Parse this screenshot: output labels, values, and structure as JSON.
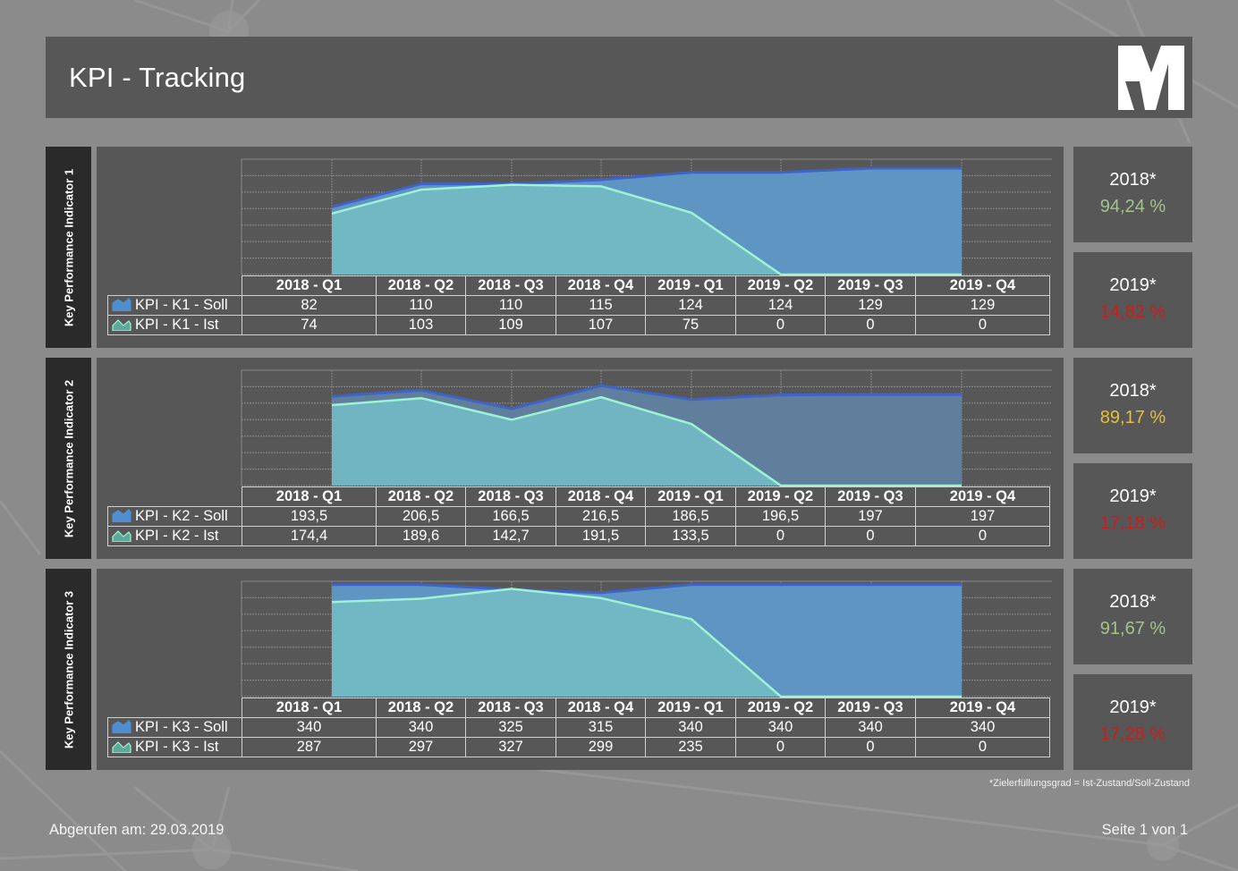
{
  "header": {
    "title": "KPI - Tracking",
    "logo": "M-logo"
  },
  "colors": {
    "soll_fill": "#5f95c2",
    "soll_fill_kpi2": "#5f7f9c",
    "soll_line": "#3f63c8",
    "ist_fill": "#72b8c4",
    "ist_line": "#9ff3d4",
    "good": "#a2c48a",
    "warn": "#e8bf3c",
    "bad": "#d11a1a"
  },
  "quarters": [
    "2018 - Q1",
    "2018 - Q2",
    "2018 - Q3",
    "2018 - Q4",
    "2019 - Q1",
    "2019 - Q2",
    "2019 - Q3",
    "2019 - Q4"
  ],
  "kpis": [
    {
      "label": "Key Performance Indicator 1",
      "soll_label": "KPI - K1 - Soll",
      "ist_label": "KPI - K1 - Ist",
      "soll": [
        "82",
        "110",
        "110",
        "115",
        "124",
        "124",
        "129",
        "129"
      ],
      "ist": [
        "74",
        "103",
        "109",
        "107",
        "75",
        "0",
        "0",
        "0"
      ],
      "results": [
        {
          "year": "2018*",
          "value": "94,24 %",
          "status": "good"
        },
        {
          "year": "2019*",
          "value": "14,82 %",
          "status": "bad"
        }
      ]
    },
    {
      "label": "Key Performance Indicator 2",
      "soll_label": "KPI - K2 - Soll",
      "ist_label": "KPI - K2 - Ist",
      "soll": [
        "193,5",
        "206,5",
        "166,5",
        "216,5",
        "186,5",
        "196,5",
        "197",
        "197"
      ],
      "ist": [
        "174,4",
        "189,6",
        "142,7",
        "191,5",
        "133,5",
        "0",
        "0",
        "0"
      ],
      "results": [
        {
          "year": "2018*",
          "value": "89,17 %",
          "status": "warn"
        },
        {
          "year": "2019*",
          "value": "17,18 %",
          "status": "bad"
        }
      ]
    },
    {
      "label": "Key Performance Indicator 3",
      "soll_label": "KPI - K3 - Soll",
      "ist_label": "KPI - K3 - Ist",
      "soll": [
        "340",
        "340",
        "325",
        "315",
        "340",
        "340",
        "340",
        "340"
      ],
      "ist": [
        "287",
        "297",
        "327",
        "299",
        "235",
        "0",
        "0",
        "0"
      ],
      "results": [
        {
          "year": "2018*",
          "value": "91,67 %",
          "status": "good"
        },
        {
          "year": "2019*",
          "value": "17,28 %",
          "status": "bad"
        }
      ]
    }
  ],
  "footer": {
    "footnote": "*Zielerfüllungsgrad = Ist-Zustand/Soll-Zustand",
    "retrieved": "Abgerufen am:  29.03.2019",
    "page": "Seite 1 von 1"
  },
  "chart_data": [
    {
      "type": "area",
      "title": "Key Performance Indicator 1",
      "categories": [
        "2018 - Q1",
        "2018 - Q2",
        "2018 - Q3",
        "2018 - Q4",
        "2019 - Q1",
        "2019 - Q2",
        "2019 - Q3",
        "2019 - Q4"
      ],
      "series": [
        {
          "name": "KPI - K1 - Soll",
          "values": [
            82,
            110,
            110,
            115,
            124,
            124,
            129,
            129
          ]
        },
        {
          "name": "KPI - K1 - Ist",
          "values": [
            74,
            103,
            109,
            107,
            75,
            0,
            0,
            0
          ]
        }
      ],
      "ylim": [
        0,
        140
      ],
      "grid": true,
      "legend_position": "table-left",
      "annotations": [
        "2018*: 94,24 %",
        "2019*: 14,82 %"
      ]
    },
    {
      "type": "area",
      "title": "Key Performance Indicator 2",
      "categories": [
        "2018 - Q1",
        "2018 - Q2",
        "2018 - Q3",
        "2018 - Q4",
        "2019 - Q1",
        "2019 - Q2",
        "2019 - Q3",
        "2019 - Q4"
      ],
      "series": [
        {
          "name": "KPI - K2 - Soll",
          "values": [
            193.5,
            206.5,
            166.5,
            216.5,
            186.5,
            196.5,
            197,
            197
          ]
        },
        {
          "name": "KPI - K2 - Ist",
          "values": [
            174.4,
            189.6,
            142.7,
            191.5,
            133.5,
            0,
            0,
            0
          ]
        }
      ],
      "ylim": [
        0,
        250
      ],
      "grid": true,
      "legend_position": "table-left",
      "annotations": [
        "2018*: 89,17 %",
        "2019*: 17,18 %"
      ]
    },
    {
      "type": "area",
      "title": "Key Performance Indicator 3",
      "categories": [
        "2018 - Q1",
        "2018 - Q2",
        "2018 - Q3",
        "2018 - Q4",
        "2019 - Q1",
        "2019 - Q2",
        "2019 - Q3",
        "2019 - Q4"
      ],
      "series": [
        {
          "name": "KPI - K3 - Soll",
          "values": [
            340,
            340,
            325,
            315,
            340,
            340,
            340,
            340
          ]
        },
        {
          "name": "KPI - K3 - Ist",
          "values": [
            287,
            297,
            327,
            299,
            235,
            0,
            0,
            0
          ]
        }
      ],
      "ylim": [
        0,
        350
      ],
      "grid": true,
      "legend_position": "table-left",
      "annotations": [
        "2018*: 91,67 %",
        "2019*: 17,28 %"
      ]
    }
  ]
}
